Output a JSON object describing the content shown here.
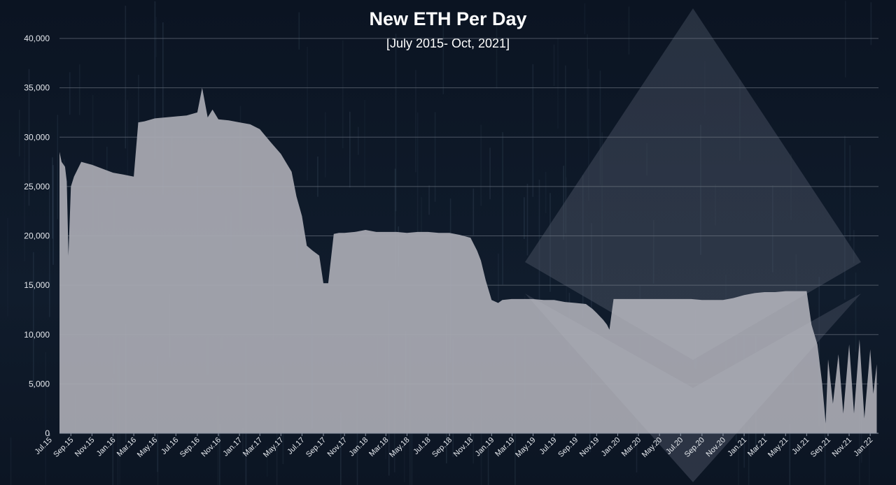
{
  "chart_data": {
    "type": "area",
    "title": "New ETH Per Day",
    "subtitle": "[July 2015- Oct, 2021]",
    "xlabel": "",
    "ylabel": "",
    "ylim": [
      0,
      40000
    ],
    "y_ticks": [
      "0",
      "5,000",
      "10,000",
      "15,000",
      "20,000",
      "25,000",
      "30,000",
      "35,000",
      "40,000"
    ],
    "x_tick_labels": [
      "Jul.15",
      "Sep.15",
      "Nov.15",
      "Jan.16",
      "Mar.16",
      "May.16",
      "Jul.16",
      "Sep.16",
      "Nov.16",
      "Jan.17",
      "Mar.17",
      "May.17",
      "Jul.17",
      "Sep.17",
      "Nov.17",
      "Jan.18",
      "Mar.18",
      "May.18",
      "Jul.18",
      "Sep.18",
      "Nov.18",
      "Jan.19",
      "Mar.19",
      "May.19",
      "Jul.19",
      "Sep.19",
      "Nov.19",
      "Jan.20",
      "Mar.20",
      "May.20",
      "Jul.20",
      "Sep.20",
      "Nov.20",
      "Jan.21",
      "Mar.21",
      "May.21",
      "Jul.21",
      "Sep.21",
      "Nov.21",
      "Jan.22"
    ],
    "grid": true,
    "legend": "none",
    "colors": {
      "area": "#a9aab3",
      "grid": "#5c6472",
      "background": "#0e1726",
      "text": "#ffffff"
    },
    "series": [
      {
        "x": [
          "2015-07-30",
          "2015-08-05",
          "2015-08-15",
          "2015-08-20",
          "2015-08-25",
          "2015-09-01",
          "2015-09-10",
          "2015-10-01",
          "2015-11-01",
          "2015-12-01",
          "2016-01-01",
          "2016-02-01",
          "2016-03-01",
          "2016-03-14",
          "2016-04-01",
          "2016-05-01",
          "2016-06-01",
          "2016-07-01",
          "2016-08-01",
          "2016-09-01",
          "2016-09-15",
          "2016-10-01",
          "2016-10-15",
          "2016-11-01",
          "2016-12-01",
          "2017-01-01",
          "2017-02-01",
          "2017-03-01",
          "2017-04-01",
          "2017-05-01",
          "2017-06-01",
          "2017-06-15",
          "2017-07-01",
          "2017-07-15",
          "2017-08-01",
          "2017-08-20",
          "2017-09-01",
          "2017-09-15",
          "2017-10-01",
          "2017-10-16",
          "2017-11-01",
          "2017-12-01",
          "2018-01-01",
          "2018-02-01",
          "2018-03-01",
          "2018-04-01",
          "2018-05-01",
          "2018-06-01",
          "2018-07-01",
          "2018-08-01",
          "2018-09-01",
          "2018-10-01",
          "2018-11-01",
          "2018-11-20",
          "2018-12-01",
          "2018-12-15",
          "2019-01-01",
          "2019-01-20",
          "2019-02-01",
          "2019-02-28",
          "2019-03-15",
          "2019-04-01",
          "2019-05-01",
          "2019-06-01",
          "2019-07-01",
          "2019-08-01",
          "2019-09-01",
          "2019-10-01",
          "2019-10-20",
          "2019-11-01",
          "2019-11-20",
          "2019-12-01",
          "2019-12-08",
          "2019-12-20",
          "2020-01-01",
          "2020-02-01",
          "2020-03-01",
          "2020-04-01",
          "2020-05-01",
          "2020-06-01",
          "2020-07-01",
          "2020-08-01",
          "2020-09-01",
          "2020-10-01",
          "2020-11-01",
          "2020-12-01",
          "2021-01-01",
          "2021-02-01",
          "2021-03-01",
          "2021-04-01",
          "2021-05-01",
          "2021-06-01",
          "2021-07-01",
          "2021-07-15",
          "2021-08-01",
          "2021-08-15",
          "2021-08-25",
          "2021-09-01",
          "2021-09-15",
          "2021-10-01",
          "2021-10-15",
          "2021-11-01",
          "2021-11-15",
          "2021-12-01",
          "2021-12-15",
          "2022-01-01",
          "2022-01-10",
          "2022-01-20"
        ],
        "y": [
          28500,
          27500,
          27000,
          25500,
          18000,
          25000,
          26000,
          27500,
          27200,
          26800,
          26400,
          26200,
          26000,
          31500,
          31600,
          31900,
          32000,
          32100,
          32200,
          32500,
          35000,
          32000,
          32800,
          31800,
          31700,
          31500,
          31300,
          30800,
          29500,
          28300,
          26500,
          24000,
          22000,
          19000,
          18500,
          18000,
          15200,
          15200,
          20200,
          20300,
          20300,
          20400,
          20600,
          20400,
          20400,
          20400,
          20300,
          20400,
          20400,
          20300,
          20300,
          20100,
          19800,
          18500,
          17500,
          15500,
          13500,
          13200,
          13500,
          13600,
          13600,
          13600,
          13600,
          13500,
          13500,
          13300,
          13200,
          13100,
          12600,
          12200,
          11500,
          11000,
          10500,
          13600,
          13600,
          13600,
          13600,
          13600,
          13600,
          13600,
          13600,
          13600,
          13500,
          13500,
          13500,
          13700,
          14000,
          14200,
          14300,
          14300,
          14400,
          14400,
          14400,
          11000,
          9000,
          5000,
          1000,
          7500,
          3000,
          8000,
          2000,
          9000,
          2000,
          9500,
          1500,
          8500,
          4000,
          7000
        ]
      }
    ]
  }
}
